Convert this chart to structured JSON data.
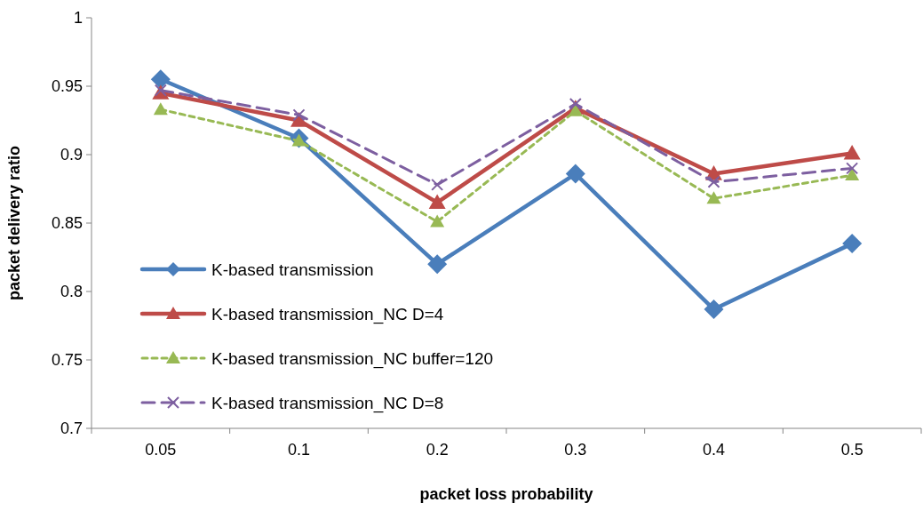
{
  "chart_data": {
    "type": "line",
    "xlabel": "packet loss probability",
    "ylabel": "packet delivery ratio",
    "categories": [
      "0.05",
      "0.1",
      "0.2",
      "0.3",
      "0.4",
      "0.5"
    ],
    "ylim": [
      0.7,
      1
    ],
    "yticks": [
      0.7,
      0.75,
      0.8,
      0.85,
      0.9,
      0.95,
      1
    ],
    "grid": false,
    "legend": "bottom left",
    "series": [
      {
        "name": "K-based transmission",
        "color": "#4a7ebb",
        "marker": "diamond",
        "line_style": "solid",
        "values": [
          0.955,
          0.912,
          0.82,
          0.886,
          0.787,
          0.835
        ]
      },
      {
        "name": "K-based transmission_NC D=4",
        "color": "#be4b48",
        "marker": "triangle",
        "line_style": "solid",
        "values": [
          0.945,
          0.925,
          0.865,
          0.934,
          0.886,
          0.901
        ]
      },
      {
        "name": "K-based transmission_NC buffer=120",
        "color": "#98b954",
        "marker": "triangle",
        "line_style": "dotted",
        "values": [
          0.933,
          0.91,
          0.851,
          0.932,
          0.868,
          0.885
        ]
      },
      {
        "name": "K-based transmission_NC D=8",
        "color": "#7d5fa0",
        "marker": "cross",
        "line_style": "dashed",
        "values": [
          0.947,
          0.929,
          0.878,
          0.937,
          0.88,
          0.89
        ]
      }
    ]
  }
}
